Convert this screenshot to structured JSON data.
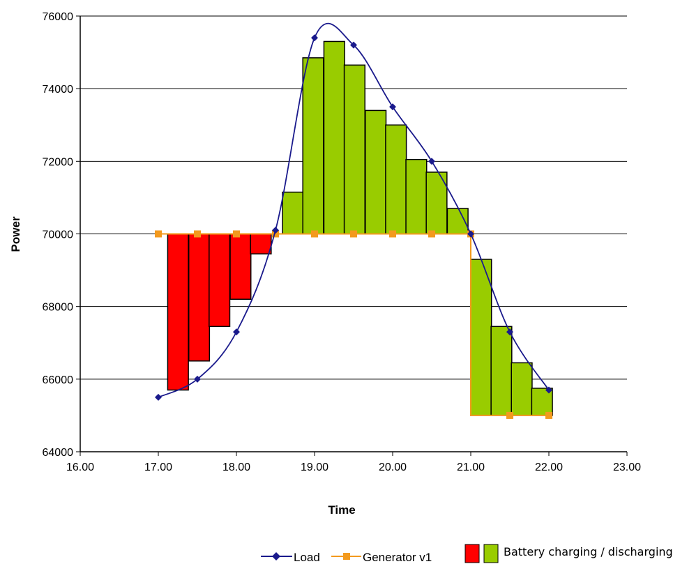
{
  "chart_data": {
    "type": "line",
    "xlabel": "Time",
    "ylabel": "Power",
    "xlim": [
      16,
      23
    ],
    "ylim": [
      64000,
      76000
    ],
    "x_ticks": [
      "16.00",
      "17.00",
      "18.00",
      "19.00",
      "20.00",
      "21.00",
      "22.00",
      "23.00"
    ],
    "y_ticks": [
      "64000",
      "66000",
      "68000",
      "70000",
      "72000",
      "74000",
      "76000"
    ],
    "grid": "horizontal",
    "series": [
      {
        "name": "Load",
        "type": "line",
        "smooth": true,
        "color": "#1a1a8c",
        "marker": "diamond",
        "points": [
          [
            17.0,
            65500
          ],
          [
            17.5,
            66000
          ],
          [
            18.0,
            67300
          ],
          [
            18.5,
            70100
          ],
          [
            19.0,
            75400
          ],
          [
            19.5,
            75200
          ],
          [
            20.0,
            73500
          ],
          [
            20.5,
            72000
          ],
          [
            21.0,
            70000
          ],
          [
            21.5,
            67300
          ],
          [
            22.0,
            65700
          ]
        ]
      },
      {
        "name": "Generator v1",
        "type": "line",
        "color": "#f39a1e",
        "marker": "square",
        "points": [
          [
            17.0,
            70000
          ],
          [
            17.5,
            70000
          ],
          [
            18.0,
            70000
          ],
          [
            18.5,
            70000
          ],
          [
            19.0,
            70000
          ],
          [
            19.5,
            70000
          ],
          [
            20.0,
            70000
          ],
          [
            20.5,
            70000
          ],
          [
            21.0,
            70000
          ],
          [
            21.0,
            65000
          ],
          [
            21.5,
            65000
          ],
          [
            22.0,
            65000
          ]
        ]
      }
    ],
    "bars": {
      "name": "Battery charging / discharging",
      "bar_width": 0.265,
      "colors": {
        "discharging": "#ff0000",
        "charging": "#99cc00"
      },
      "items": [
        {
          "x": 17.12,
          "base": 70000,
          "top": 65700,
          "state": "discharging"
        },
        {
          "x": 17.39,
          "base": 70000,
          "top": 66500,
          "state": "discharging"
        },
        {
          "x": 17.65,
          "base": 70000,
          "top": 67450,
          "state": "discharging"
        },
        {
          "x": 17.92,
          "base": 70000,
          "top": 68200,
          "state": "discharging"
        },
        {
          "x": 18.18,
          "base": 70000,
          "top": 69450,
          "state": "discharging"
        },
        {
          "x": 18.59,
          "base": 70000,
          "top": 71150,
          "state": "charging"
        },
        {
          "x": 18.85,
          "base": 70000,
          "top": 74850,
          "state": "charging"
        },
        {
          "x": 19.12,
          "base": 70000,
          "top": 75300,
          "state": "charging"
        },
        {
          "x": 19.38,
          "base": 70000,
          "top": 74650,
          "state": "charging"
        },
        {
          "x": 19.65,
          "base": 70000,
          "top": 73400,
          "state": "charging"
        },
        {
          "x": 19.91,
          "base": 70000,
          "top": 73000,
          "state": "charging"
        },
        {
          "x": 20.17,
          "base": 70000,
          "top": 72050,
          "state": "charging"
        },
        {
          "x": 20.43,
          "base": 70000,
          "top": 71700,
          "state": "charging"
        },
        {
          "x": 20.7,
          "base": 70000,
          "top": 70700,
          "state": "charging"
        },
        {
          "x": 21.0,
          "base": 65000,
          "top": 69300,
          "state": "charging"
        },
        {
          "x": 21.26,
          "base": 65000,
          "top": 67450,
          "state": "charging"
        },
        {
          "x": 21.52,
          "base": 65000,
          "top": 66450,
          "state": "charging"
        },
        {
          "x": 21.78,
          "base": 65000,
          "top": 65750,
          "state": "charging"
        }
      ]
    },
    "legend": {
      "position": "bottom",
      "items": [
        "Load",
        "Generator v1",
        "Battery charging / discharging"
      ]
    }
  }
}
